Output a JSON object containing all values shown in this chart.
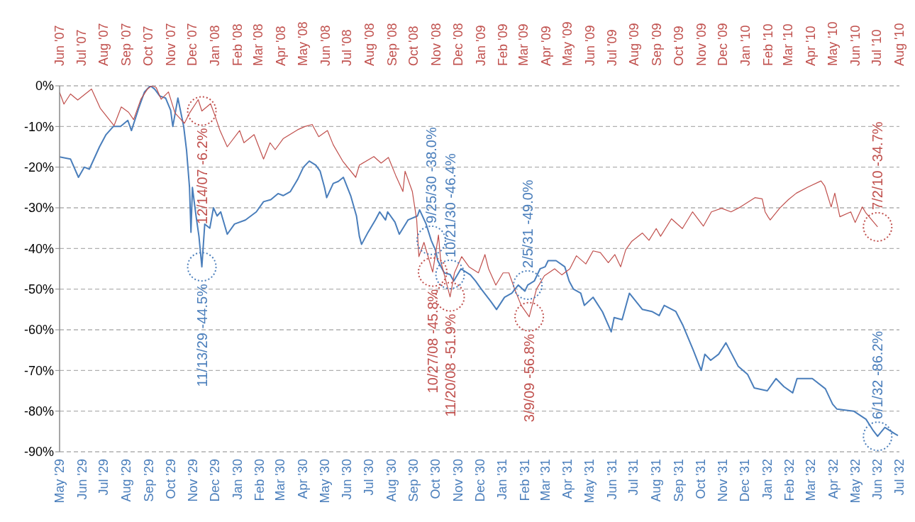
{
  "chart_data": {
    "type": "line",
    "grid": "y",
    "line_style": "solid",
    "xlim": [
      "1929-05",
      "1932-07"
    ],
    "xticks": [
      {
        "value": "1929-05",
        "label": "May '29"
      },
      {
        "value": "1929-06",
        "label": "Jun '29"
      },
      {
        "value": "1929-07",
        "label": "Jul '29"
      },
      {
        "value": "1929-08",
        "label": "Aug '29"
      },
      {
        "value": "1929-09",
        "label": "Sep '29"
      },
      {
        "value": "1929-10",
        "label": "Oct '29"
      },
      {
        "value": "1929-11",
        "label": "Nov '29"
      },
      {
        "value": "1929-12",
        "label": "Dec '29"
      },
      {
        "value": "1930-01",
        "label": "Jan '30"
      },
      {
        "value": "1930-02",
        "label": "Feb '30"
      },
      {
        "value": "1930-03",
        "label": "Mar '30"
      },
      {
        "value": "1930-04",
        "label": "Apr '30"
      },
      {
        "value": "1930-05",
        "label": "May '30"
      },
      {
        "value": "1930-06",
        "label": "Jun '30"
      },
      {
        "value": "1930-07",
        "label": "Jul '30"
      },
      {
        "value": "1930-08",
        "label": "Aug '30"
      },
      {
        "value": "1930-09",
        "label": "Sep '30"
      },
      {
        "value": "1930-10",
        "label": "Oct '30"
      },
      {
        "value": "1930-11",
        "label": "Nov '30"
      },
      {
        "value": "1930-12",
        "label": "Dec '30"
      },
      {
        "value": "1931-01",
        "label": "Jan '31"
      },
      {
        "value": "1931-02",
        "label": "Feb '31"
      },
      {
        "value": "1931-03",
        "label": "Mar '31"
      },
      {
        "value": "1931-04",
        "label": "Apr '31"
      },
      {
        "value": "1931-05",
        "label": "May '31"
      },
      {
        "value": "1931-06",
        "label": "Jun '31"
      },
      {
        "value": "1931-07",
        "label": "Jul '31"
      },
      {
        "value": "1931-08",
        "label": "Aug '31"
      },
      {
        "value": "1931-09",
        "label": "Sep '31"
      },
      {
        "value": "1931-10",
        "label": "Oct '31"
      },
      {
        "value": "1931-11",
        "label": "Nov '31"
      },
      {
        "value": "1931-12",
        "label": "Dec '31"
      },
      {
        "value": "1932-01",
        "label": "Jan '32"
      },
      {
        "value": "1932-02",
        "label": "Feb '32"
      },
      {
        "value": "1932-03",
        "label": "Mar '32"
      },
      {
        "value": "1932-04",
        "label": "Apr '32"
      },
      {
        "value": "1932-05",
        "label": "May '32"
      },
      {
        "value": "1932-06",
        "label": "Jun '32"
      },
      {
        "value": "1932-07",
        "label": "Jul '32"
      }
    ],
    "x2lim": [
      "2007-06",
      "2010-08"
    ],
    "x2ticks": [
      {
        "value": "2007-06",
        "label": "Jun '07"
      },
      {
        "value": "2007-07",
        "label": "Jul '07"
      },
      {
        "value": "2007-08",
        "label": "Aug '07"
      },
      {
        "value": "2007-09",
        "label": "Sep '07"
      },
      {
        "value": "2007-10",
        "label": "Oct '07"
      },
      {
        "value": "2007-11",
        "label": "Nov '07"
      },
      {
        "value": "2007-12",
        "label": "Dec '07"
      },
      {
        "value": "2008-01",
        "label": "Jan '08"
      },
      {
        "value": "2008-02",
        "label": "Feb '08"
      },
      {
        "value": "2008-03",
        "label": "Mar '08"
      },
      {
        "value": "2008-04",
        "label": "Apr '08"
      },
      {
        "value": "2008-05",
        "label": "May '08"
      },
      {
        "value": "2008-06",
        "label": "Jun '08"
      },
      {
        "value": "2008-07",
        "label": "Jul '08"
      },
      {
        "value": "2008-08",
        "label": "Aug '08"
      },
      {
        "value": "2008-09",
        "label": "Sep '08"
      },
      {
        "value": "2008-10",
        "label": "Oct '08"
      },
      {
        "value": "2008-11",
        "label": "Nov '08"
      },
      {
        "value": "2008-12",
        "label": "Dec '08"
      },
      {
        "value": "2009-01",
        "label": "Jan '09"
      },
      {
        "value": "2009-02",
        "label": "Feb '09"
      },
      {
        "value": "2009-03",
        "label": "Mar '09"
      },
      {
        "value": "2009-04",
        "label": "Apr '09"
      },
      {
        "value": "2009-05",
        "label": "May '09"
      },
      {
        "value": "2009-06",
        "label": "Jun '09"
      },
      {
        "value": "2009-07",
        "label": "Jul '09"
      },
      {
        "value": "2009-08",
        "label": "Aug '09"
      },
      {
        "value": "2009-09",
        "label": "Sep '09"
      },
      {
        "value": "2009-10",
        "label": "Oct '09"
      },
      {
        "value": "2009-11",
        "label": "Nov '09"
      },
      {
        "value": "2009-12",
        "label": "Dec '09"
      },
      {
        "value": "2010-01",
        "label": "Jan '10"
      },
      {
        "value": "2010-02",
        "label": "Feb '10"
      },
      {
        "value": "2010-03",
        "label": "Mar '10"
      },
      {
        "value": "2010-04",
        "label": "Apr '10"
      },
      {
        "value": "2010-05",
        "label": "May '10"
      },
      {
        "value": "2010-06",
        "label": "Jun '10"
      },
      {
        "value": "2010-07",
        "label": "Jul '10"
      },
      {
        "value": "2010-08",
        "label": "Aug '10"
      }
    ],
    "ylim": [
      -90,
      0
    ],
    "yticks": [
      {
        "value": -90,
        "label": "-90%"
      },
      {
        "value": -80,
        "label": "-80%"
      },
      {
        "value": -70,
        "label": "-70%"
      },
      {
        "value": -60,
        "label": "-60%"
      },
      {
        "value": -50,
        "label": "-50%"
      },
      {
        "value": -40,
        "label": "-40%"
      },
      {
        "value": -30,
        "label": "-30%"
      },
      {
        "value": -20,
        "label": "-20%"
      },
      {
        "value": -10,
        "label": "-10%"
      },
      {
        "value": 0,
        "label": "0%"
      }
    ],
    "series": [
      {
        "color": "#4a7ebb",
        "x": [
          "1929-05-01",
          "1929-05-16",
          "1929-05-27",
          "1929-06-04",
          "1929-06-11",
          "1929-06-25",
          "1929-07-04",
          "1929-07-14",
          "1929-07-24",
          "1929-08-03",
          "1929-08-08",
          "1929-08-18",
          "1929-08-26",
          "1929-09-03",
          "1929-09-09",
          "1929-09-16",
          "1929-09-24",
          "1929-10-01",
          "1929-10-04",
          "1929-10-11",
          "1929-10-19",
          "1929-10-23",
          "1929-10-27",
          "1929-10-29",
          "1929-10-31",
          "1929-11-05",
          "1929-11-09",
          "1929-11-13",
          "1929-11-17",
          "1929-11-24",
          "1929-11-29",
          "1929-12-04",
          "1929-12-09",
          "1929-12-18",
          "1929-12-28",
          "1930-01-12",
          "1930-01-27",
          "1930-02-06",
          "1930-02-16",
          "1930-02-26",
          "1930-03-05",
          "1930-03-15",
          "1930-03-25",
          "1930-04-02",
          "1930-04-10",
          "1930-04-19",
          "1930-04-25",
          "1930-05-01",
          "1930-05-04",
          "1930-05-13",
          "1930-05-20",
          "1930-05-27",
          "1930-06-06",
          "1930-06-14",
          "1930-06-18",
          "1930-06-21",
          "1930-06-30",
          "1930-07-10",
          "1930-07-16",
          "1930-07-24",
          "1930-07-27",
          "1930-08-06",
          "1930-08-12",
          "1930-08-24",
          "1930-09-06",
          "1930-09-09",
          "1930-09-18",
          "1930-09-25",
          "1930-10-01",
          "1930-10-04",
          "1930-10-13",
          "1930-10-21",
          "1930-10-26",
          "1930-11-05",
          "1930-11-18",
          "1930-11-25",
          "1930-12-03",
          "1930-12-16",
          "1930-12-24",
          "1931-01-04",
          "1931-01-14",
          "1931-01-23",
          "1931-02-01",
          "1931-02-05",
          "1931-02-14",
          "1931-02-22",
          "1931-03-01",
          "1931-03-05",
          "1931-03-16",
          "1931-03-28",
          "1931-04-03",
          "1931-04-09",
          "1931-04-19",
          "1931-04-24",
          "1931-05-06",
          "1931-05-19",
          "1931-05-31",
          "1931-06-04",
          "1931-06-15",
          "1931-06-25",
          "1931-07-04",
          "1931-07-13",
          "1931-07-26",
          "1931-08-05",
          "1931-08-12",
          "1931-08-28",
          "1931-09-07",
          "1931-09-21",
          "1931-10-02",
          "1931-10-07",
          "1931-10-15",
          "1931-10-26",
          "1931-11-05",
          "1931-11-22",
          "1931-12-05",
          "1931-12-14",
          "1932-01-01",
          "1932-01-13",
          "1932-01-24",
          "1932-02-05",
          "1932-02-11",
          "1932-03-03",
          "1932-03-21",
          "1932-03-31",
          "1932-04-06",
          "1932-04-29",
          "1932-05-16",
          "1932-05-26",
          "1932-06-01",
          "1932-06-11",
          "1932-06-24",
          "1932-06-29"
        ],
        "value_labels": [
          null,
          null,
          null,
          null,
          null,
          null,
          null,
          null,
          null,
          null,
          null,
          null,
          null,
          null,
          null,
          null,
          null,
          null,
          null,
          null,
          null,
          null,
          null,
          null,
          null,
          null,
          null,
          "11/13/29 -44.5%",
          null,
          null,
          null,
          null,
          null,
          null,
          null,
          null,
          null,
          null,
          null,
          null,
          null,
          null,
          null,
          null,
          null,
          null,
          null,
          null,
          null,
          null,
          null,
          null,
          null,
          null,
          null,
          null,
          null,
          null,
          null,
          null,
          null,
          null,
          null,
          null,
          null,
          null,
          null,
          "9/25/30 -38.0%",
          null,
          null,
          null,
          "10/21/30 -46.4%",
          null,
          null,
          null,
          null,
          null,
          null,
          null,
          null,
          null,
          null,
          null,
          "2/5/31 -49.0%",
          null,
          null,
          null,
          null,
          null,
          null,
          null,
          null,
          null,
          null,
          null,
          null,
          null,
          null,
          null,
          null,
          null,
          null,
          null,
          null,
          null,
          null,
          null,
          null,
          null,
          null,
          null,
          null,
          null,
          null,
          null,
          null,
          null,
          null,
          null,
          null,
          null,
          null,
          null,
          null,
          null,
          null,
          null,
          null,
          "6/1/32 -86.2%",
          null,
          null,
          null
        ],
        "values": [
          -17.5,
          -18,
          -22.5,
          -20,
          -20.5,
          -15,
          -12,
          -10,
          -10,
          -8.5,
          -11,
          -5.5,
          -1.5,
          0,
          -0.8,
          -2.5,
          -3,
          -6,
          -10,
          -3,
          -10,
          -16,
          -25,
          -36,
          -25,
          -32,
          -37,
          -44.5,
          -34,
          -35,
          -30,
          -32,
          -31,
          -36.5,
          -34,
          -33,
          -31,
          -28.5,
          -28,
          -26.5,
          -27,
          -26,
          -23,
          -20,
          -18.5,
          -19.5,
          -21,
          -25,
          -27.5,
          -24,
          -23.5,
          -22.5,
          -27,
          -32,
          -37,
          -39,
          -36,
          -33,
          -31,
          -33,
          -31,
          -33.5,
          -36.5,
          -33,
          -32,
          -30.5,
          -34,
          -38,
          -40.5,
          -43,
          -46,
          -46.4,
          -48,
          -45,
          -46.5,
          -48,
          -50,
          -53,
          -55,
          -52,
          -51,
          -49,
          -50.5,
          -49,
          -48,
          -45,
          -44.5,
          -43,
          -43,
          -44.5,
          -48,
          -50,
          -51,
          -54,
          -52,
          -55.6,
          -60.5,
          -57,
          -57.5,
          -51,
          -53,
          -55,
          -55.5,
          -56.5,
          -54,
          -55.5,
          -59,
          -65,
          -70,
          -66,
          -67.5,
          -66,
          -63.2,
          -69,
          -71,
          -74.3,
          -75,
          -72,
          -74,
          -75.5,
          -72,
          -72,
          -74.5,
          -78.3,
          -79.5,
          -80,
          -82,
          -84.8,
          -86.2,
          -84,
          -85.5,
          -86
        ]
      },
      {
        "color": "#c0504d",
        "axis": "x2",
        "x": [
          "2007-06-01",
          "2007-06-07",
          "2007-06-16",
          "2007-06-26",
          "2007-07-15",
          "2007-07-27",
          "2007-08-15",
          "2007-08-25",
          "2007-09-04",
          "2007-09-11",
          "2007-09-21",
          "2007-09-30",
          "2007-10-06",
          "2007-10-12",
          "2007-10-19",
          "2007-10-29",
          "2007-11-07",
          "2007-11-20",
          "2007-11-27",
          "2007-12-09",
          "2007-12-14",
          "2007-12-26",
          "2008-01-01",
          "2008-01-08",
          "2008-01-18",
          "2008-02-04",
          "2008-02-10",
          "2008-02-24",
          "2008-03-08",
          "2008-03-17",
          "2008-03-24",
          "2008-04-04",
          "2008-04-24",
          "2008-05-04",
          "2008-05-14",
          "2008-05-23",
          "2008-06-04",
          "2008-06-12",
          "2008-06-25",
          "2008-07-13",
          "2008-07-18",
          "2008-08-07",
          "2008-08-17",
          "2008-08-27",
          "2008-09-06",
          "2008-09-16",
          "2008-09-19",
          "2008-09-29",
          "2008-10-05",
          "2008-10-08",
          "2008-10-15",
          "2008-10-27",
          "2008-11-04",
          "2008-11-07",
          "2008-11-20",
          "2008-11-26",
          "2008-12-06",
          "2008-12-16",
          "2008-12-29",
          "2009-01-07",
          "2009-01-12",
          "2009-01-22",
          "2009-02-01",
          "2009-02-09",
          "2009-02-17",
          "2009-02-26",
          "2009-03-09",
          "2009-03-19",
          "2009-03-30",
          "2009-04-13",
          "2009-04-23",
          "2009-05-04",
          "2009-05-13",
          "2009-05-26",
          "2009-06-05",
          "2009-06-15",
          "2009-06-26",
          "2009-07-05",
          "2009-07-13",
          "2009-07-20",
          "2009-07-28",
          "2009-08-12",
          "2009-08-21",
          "2009-08-31",
          "2009-09-06",
          "2009-09-21",
          "2009-10-06",
          "2009-10-20",
          "2009-11-04",
          "2009-11-15",
          "2009-11-29",
          "2009-12-12",
          "2009-12-25",
          "2010-01-14",
          "2010-01-24",
          "2010-01-28",
          "2010-02-01",
          "2010-02-04",
          "2010-02-17",
          "2010-03-01",
          "2010-03-12",
          "2010-03-28",
          "2010-04-15",
          "2010-04-20",
          "2010-04-29",
          "2010-05-04",
          "2010-05-11",
          "2010-05-26",
          "2010-06-01",
          "2010-06-11",
          "2010-06-16",
          "2010-07-02"
        ],
        "value_labels": [
          null,
          null,
          null,
          null,
          null,
          null,
          null,
          null,
          null,
          null,
          null,
          null,
          null,
          null,
          null,
          null,
          null,
          null,
          null,
          null,
          "12/14/07 -6.2%",
          null,
          null,
          null,
          null,
          null,
          null,
          null,
          null,
          null,
          null,
          null,
          null,
          null,
          null,
          null,
          null,
          null,
          null,
          null,
          null,
          null,
          null,
          null,
          null,
          null,
          null,
          null,
          null,
          null,
          null,
          "10/27/08 -45.8%",
          null,
          null,
          "11/20/08 -51.9%",
          null,
          null,
          null,
          null,
          null,
          null,
          null,
          null,
          null,
          null,
          null,
          "3/9/09 -56.8%",
          null,
          null,
          null,
          null,
          null,
          null,
          null,
          null,
          null,
          null,
          null,
          null,
          null,
          null,
          null,
          null,
          null,
          null,
          null,
          null,
          null,
          null,
          null,
          null,
          null,
          null,
          null,
          null,
          null,
          null,
          null,
          null,
          null,
          null,
          null,
          null,
          null,
          null,
          null,
          null,
          null,
          null,
          null,
          null,
          "7/2/10 -34.7%"
        ],
        "values": [
          -1.6,
          -4.5,
          -2,
          -3.5,
          -0.8,
          -5.5,
          -9.8,
          -5.2,
          -6.5,
          -8.3,
          -3.3,
          -0.8,
          0,
          -0.4,
          -3.3,
          -1.5,
          -6.7,
          -9.2,
          -6.7,
          -3.4,
          -6.2,
          -4.4,
          -7.3,
          -11,
          -15,
          -11,
          -14,
          -12,
          -18,
          -14,
          -15.7,
          -13,
          -10.8,
          -10,
          -9.5,
          -12.5,
          -11,
          -14.5,
          -18.5,
          -22.5,
          -19.5,
          -17.4,
          -19,
          -17.6,
          -22,
          -26,
          -21,
          -26,
          -33,
          -42,
          -38.5,
          -45.8,
          -36.7,
          -43,
          -51.9,
          -46,
          -42,
          -44.5,
          -46,
          -41.5,
          -45,
          -49,
          -46,
          -46,
          -50,
          -54,
          -56.8,
          -50,
          -46.7,
          -45,
          -46.5,
          -45,
          -41.8,
          -43.8,
          -40.6,
          -41,
          -43.5,
          -41.5,
          -44.5,
          -40.3,
          -38.3,
          -36.2,
          -38,
          -35.1,
          -37,
          -32.7,
          -35.1,
          -31,
          -34.5,
          -31,
          -30.1,
          -31,
          -29.8,
          -27.5,
          -27.8,
          -31,
          -32.2,
          -33,
          -30.1,
          -28,
          -26.4,
          -24.9,
          -23.4,
          -24.6,
          -29.8,
          -26.4,
          -32.2,
          -31,
          -33.6,
          -29.8,
          -31.3,
          -34.7
        ]
      }
    ]
  }
}
